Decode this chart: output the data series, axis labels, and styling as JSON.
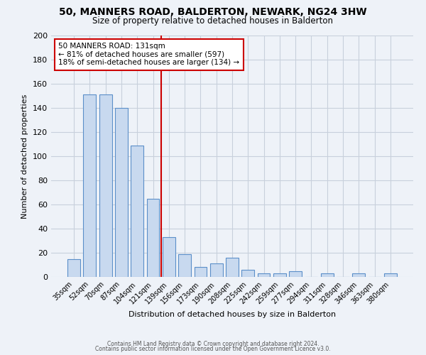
{
  "title": "50, MANNERS ROAD, BALDERTON, NEWARK, NG24 3HW",
  "subtitle": "Size of property relative to detached houses in Balderton",
  "xlabel": "Distribution of detached houses by size in Balderton",
  "ylabel": "Number of detached properties",
  "bar_labels": [
    "35sqm",
    "52sqm",
    "70sqm",
    "87sqm",
    "104sqm",
    "121sqm",
    "139sqm",
    "156sqm",
    "173sqm",
    "190sqm",
    "208sqm",
    "225sqm",
    "242sqm",
    "259sqm",
    "277sqm",
    "294sqm",
    "311sqm",
    "328sqm",
    "346sqm",
    "363sqm",
    "380sqm"
  ],
  "bar_values": [
    15,
    151,
    151,
    140,
    109,
    65,
    33,
    19,
    8,
    11,
    16,
    6,
    3,
    3,
    5,
    0,
    3,
    0,
    3,
    0,
    3
  ],
  "bar_color": "#c8d9ef",
  "bar_edge_color": "#5b8fc9",
  "ylim": [
    0,
    200
  ],
  "yticks": [
    0,
    20,
    40,
    60,
    80,
    100,
    120,
    140,
    160,
    180,
    200
  ],
  "annotation_title": "50 MANNERS ROAD: 131sqm",
  "annotation_line1": "← 81% of detached houses are smaller (597)",
  "annotation_line2": "18% of semi-detached houses are larger (134) →",
  "annotation_box_color": "#ffffff",
  "annotation_box_edge_color": "#cc0000",
  "vline_color": "#cc0000",
  "grid_color": "#c8d0dc",
  "background_color": "#eef2f8",
  "footer_line1": "Contains HM Land Registry data © Crown copyright and database right 2024.",
  "footer_line2": "Contains public sector information licensed under the Open Government Licence v3.0."
}
